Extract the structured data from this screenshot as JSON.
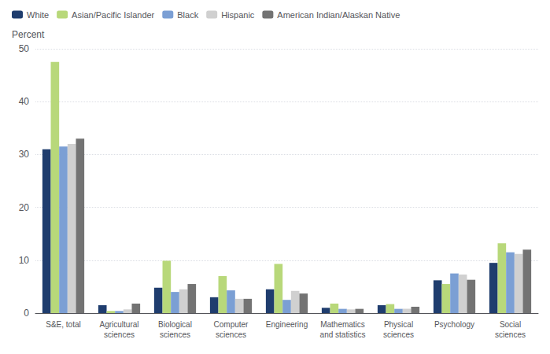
{
  "chart_data": {
    "type": "bar",
    "ylabel": "Percent",
    "categories": [
      "S&E, total",
      "Agricultural\nsciences",
      "Biological\nsciences",
      "Computer\nsciences",
      "Engineering",
      "Mathematics\nand statistics",
      "Physical\nsciences",
      "Psychology",
      "Social\nsciences"
    ],
    "series": [
      {
        "name": "White",
        "color": "#1f3d6e",
        "values": [
          31.0,
          1.5,
          4.8,
          3.0,
          4.5,
          1.0,
          1.5,
          6.2,
          9.5
        ]
      },
      {
        "name": "Asian/Pacific Islander",
        "color": "#b8d87a",
        "values": [
          47.5,
          0.4,
          9.9,
          7.0,
          9.3,
          1.8,
          1.7,
          5.5,
          13.2
        ]
      },
      {
        "name": "Black",
        "color": "#7b9fd4",
        "values": [
          31.5,
          0.4,
          4.0,
          4.3,
          2.5,
          0.8,
          0.8,
          7.5,
          11.5
        ]
      },
      {
        "name": "Hispanic",
        "color": "#d0d0d0",
        "values": [
          32.0,
          0.7,
          4.5,
          2.7,
          4.2,
          0.7,
          0.8,
          7.3,
          11.2
        ]
      },
      {
        "name": "American Indian/Alaskan Native",
        "color": "#737373",
        "values": [
          33.0,
          1.8,
          5.5,
          2.7,
          3.7,
          0.8,
          1.2,
          6.3,
          12.0
        ]
      }
    ],
    "ylim": [
      0,
      50
    ],
    "yticks": [
      0,
      10,
      20,
      30,
      40,
      50
    ],
    "grid": true,
    "legend": "upper left"
  }
}
